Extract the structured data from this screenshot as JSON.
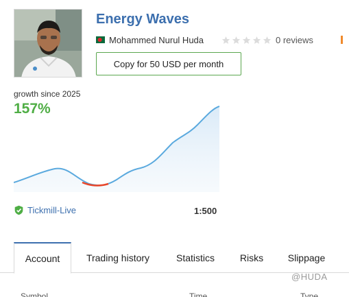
{
  "signal": {
    "title": "Energy Waves",
    "author": "Mohammed Nurul Huda",
    "author_flag": "bangladesh-flag-icon",
    "rating_stars": 0,
    "reviews": "0 reviews",
    "copy_button": "Copy for 50 USD per month"
  },
  "growth": {
    "label": "growth since 2025",
    "value": "157%"
  },
  "account": {
    "name": "Tickmill-Live",
    "leverage": "1:500"
  },
  "tabs": [
    {
      "label": "Account",
      "active": true
    },
    {
      "label": "Trading history",
      "active": false
    },
    {
      "label": "Statistics",
      "active": false
    },
    {
      "label": "Risks",
      "active": false
    },
    {
      "label": "Slippage",
      "active": false
    }
  ],
  "table_headers": [
    "Symbol",
    "Time",
    "Type"
  ],
  "watermark": "@HUDA",
  "colors": {
    "accent_blue": "#3c6fae",
    "growth_green": "#4fae45",
    "line_blue": "#5aa9de",
    "drawdown_red": "#e8462a",
    "button_border": "#5aa64e"
  }
}
